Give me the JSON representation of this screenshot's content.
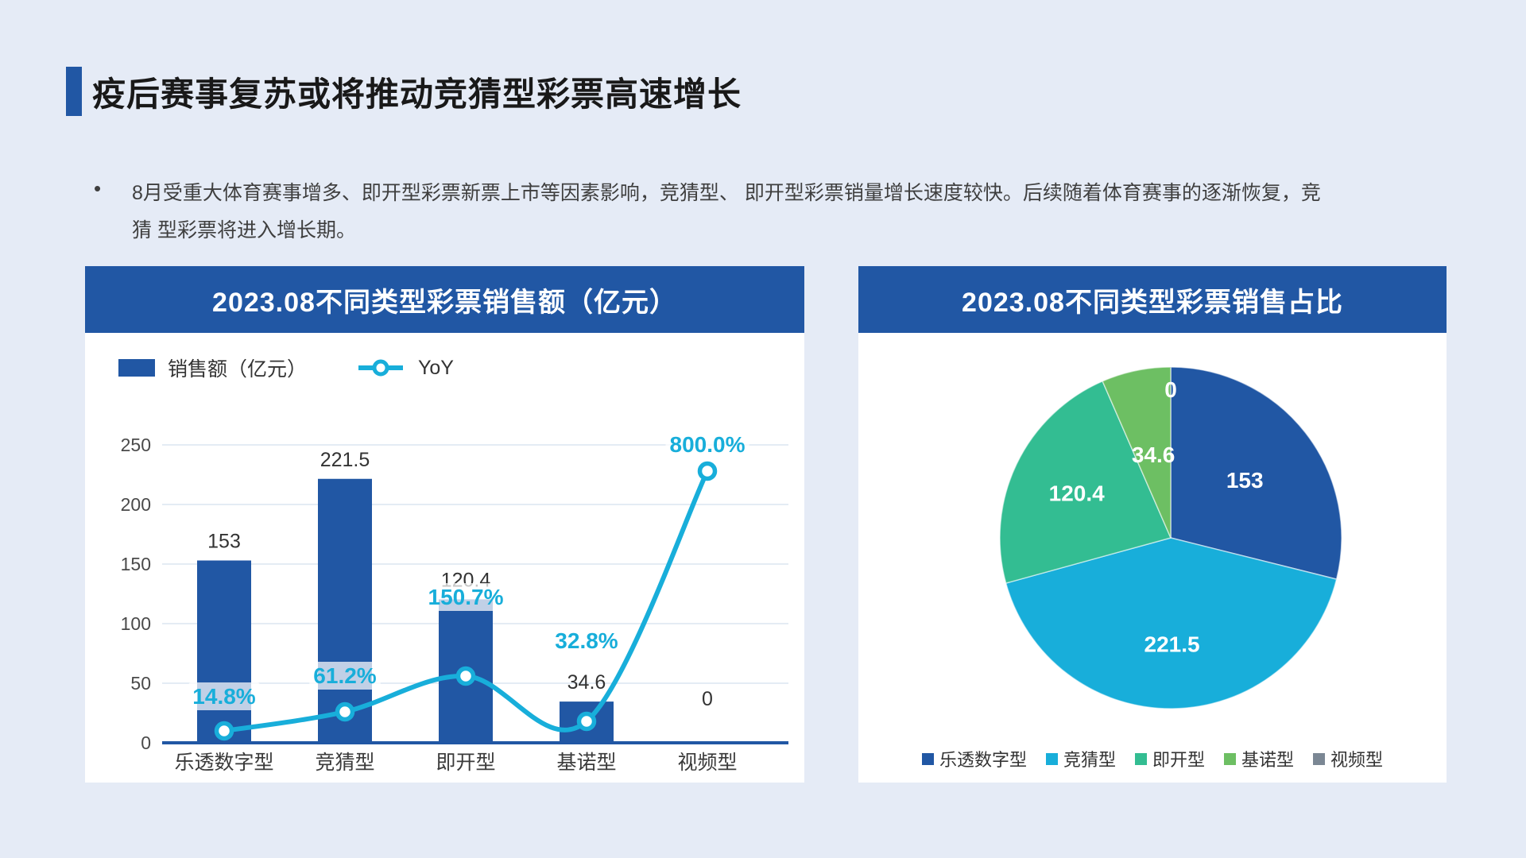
{
  "slide": {
    "title": "疫后赛事复苏或将推动竞猜型彩票高速增长",
    "bullet_marker": "•",
    "bullet_text": "8月受重大体育赛事增多、即开型彩票新票上市等因素影响，竞猜型、 即开型彩票销量增长速度较快。后续随着体育赛事的逐渐恢复，竞猜 型彩票将进入增长期。",
    "colors": {
      "background": "#E5EBF6",
      "accent_blue": "#2157A4",
      "cyan": "#18AEDA",
      "grid": "#DCE5F0"
    }
  },
  "chart_data": [
    {
      "type": "bar",
      "panel_title": "2023.08不同类型彩票销售额（亿元）",
      "categories": [
        "乐透数字型",
        "竞猜型",
        "即开型",
        "基诺型",
        "视频型"
      ],
      "series": [
        {
          "name": "销售额（亿元）",
          "type": "bar",
          "color": "#2157A4",
          "values": [
            153,
            221.5,
            120.4,
            34.6,
            0
          ],
          "labels": [
            "153",
            "221.5",
            "120.4",
            "34.6",
            "0"
          ]
        },
        {
          "name": "YoY",
          "type": "line",
          "color": "#18AEDA",
          "values": [
            "14.8%",
            "61.2%",
            "150.7%",
            "32.8%",
            "800.0%"
          ]
        }
      ],
      "ylim": [
        0,
        250
      ],
      "yticks": [
        0,
        50,
        100,
        150,
        200,
        250
      ],
      "grid": true,
      "legend_position": "top-left",
      "layout": {
        "line_points_on_bar_axis": [
          10,
          26,
          56,
          18,
          228
        ],
        "yoy_label_dy": [
          34,
          36,
          90,
          92,
          24
        ],
        "bar_label_rise": 16,
        "zero_bar_label_rise": 47
      }
    },
    {
      "type": "pie",
      "panel_title": "2023.08不同类型彩票销售占比",
      "categories": [
        "乐透数字型",
        "竞猜型",
        "即开型",
        "基诺型",
        "视频型"
      ],
      "values": [
        153,
        221.5,
        120.4,
        34.6,
        0
      ],
      "labels": [
        "153",
        "221.5",
        "120.4",
        "34.6",
        "0"
      ],
      "colors": [
        "#2157A4",
        "#18AEDA",
        "#33BD92",
        "#6DBF63",
        "#7B8794"
      ],
      "legend_position": "bottom",
      "start_angle_deg": 0,
      "direction": "clockwise",
      "layout": {
        "label_r_factor": [
          0.55,
          0.62,
          0.61,
          0.5,
          0.87
        ]
      }
    }
  ]
}
